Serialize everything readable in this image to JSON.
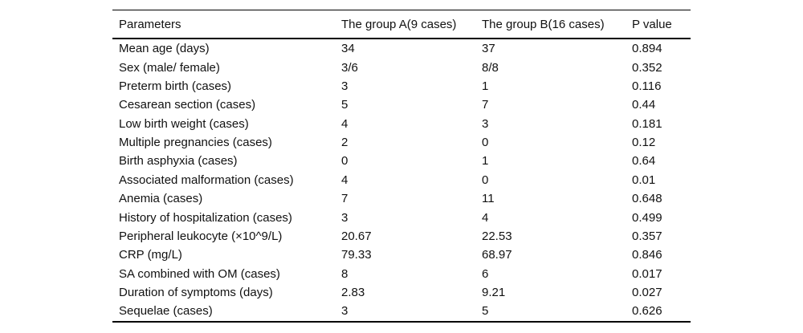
{
  "colors": {
    "background": "#ffffff",
    "text": "#111111",
    "rule": "#000000"
  },
  "table": {
    "columns": [
      "Parameters",
      "The group A(9 cases)",
      "The group B(16 cases)",
      "P value"
    ],
    "rows": [
      [
        "Mean age (days)",
        "34",
        "37",
        "0.894"
      ],
      [
        "Sex (male/ female)",
        "3/6",
        "8/8",
        "0.352"
      ],
      [
        "Preterm birth (cases)",
        "3",
        "1",
        "0.116"
      ],
      [
        "Cesarean section (cases)",
        "5",
        "7",
        "0.44"
      ],
      [
        "Low birth weight (cases)",
        "4",
        "3",
        "0.181"
      ],
      [
        "Multiple pregnancies (cases)",
        "2",
        "0",
        "0.12"
      ],
      [
        "Birth asphyxia (cases)",
        "0",
        "1",
        "0.64"
      ],
      [
        "Associated malformation (cases)",
        "4",
        "0",
        "0.01"
      ],
      [
        "Anemia (cases)",
        "7",
        "11",
        "0.648"
      ],
      [
        "History of hospitalization (cases)",
        "3",
        "4",
        "0.499"
      ],
      [
        "Peripheral leukocyte (×10^9/L)",
        "20.67",
        "22.53",
        "0.357"
      ],
      [
        "CRP (mg/L)",
        "79.33",
        "68.97",
        "0.846"
      ],
      [
        "SA combined with OM (cases)",
        "8",
        "6",
        "0.017"
      ],
      [
        "Duration of symptoms (days)",
        "2.83",
        "9.21",
        "0.027"
      ],
      [
        "Sequelae (cases)",
        "3",
        "5",
        "0.626"
      ]
    ]
  }
}
